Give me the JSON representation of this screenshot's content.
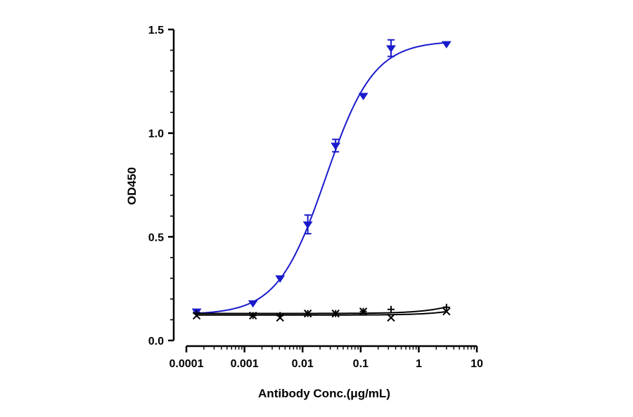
{
  "chart_data": {
    "type": "scatter",
    "xlabel": "Antibody Conc.(μg/mL)",
    "ylabel": "OD450",
    "x_scale": "log",
    "xlim": [
      0.0001,
      10
    ],
    "ylim": [
      0,
      1.5
    ],
    "x_ticks": [
      "0.0001",
      "0.001",
      "0.01",
      "0.1",
      "1",
      "10"
    ],
    "y_ticks": [
      "0.0",
      "0.5",
      "1.0",
      "1.5"
    ],
    "grid": false,
    "legend": "none",
    "series": [
      {
        "marker": "triangle-down",
        "color": "#1a1acc",
        "fit": "4PL",
        "x": [
          0.00015,
          0.0014,
          0.0041,
          0.0123,
          0.037,
          0.111,
          0.333,
          3.0
        ],
        "y": [
          0.14,
          0.18,
          0.3,
          0.56,
          0.94,
          1.18,
          1.41,
          1.43
        ],
        "error": [
          0,
          0,
          0,
          0.045,
          0.03,
          0,
          0.04,
          0
        ]
      },
      {
        "marker": "plus",
        "color": "#000000",
        "fit": "linear",
        "x": [
          0.00015,
          0.0014,
          0.0041,
          0.0123,
          0.037,
          0.111,
          0.333,
          3.0
        ],
        "y": [
          0.13,
          0.12,
          0.12,
          0.13,
          0.13,
          0.14,
          0.15,
          0.16
        ]
      },
      {
        "marker": "x",
        "color": "#000000",
        "fit": "linear",
        "x": [
          0.00015,
          0.0014,
          0.0041,
          0.0123,
          0.037,
          0.111,
          0.333,
          3.0
        ],
        "y": [
          0.12,
          0.12,
          0.11,
          0.13,
          0.13,
          0.14,
          0.11,
          0.14
        ]
      }
    ]
  }
}
